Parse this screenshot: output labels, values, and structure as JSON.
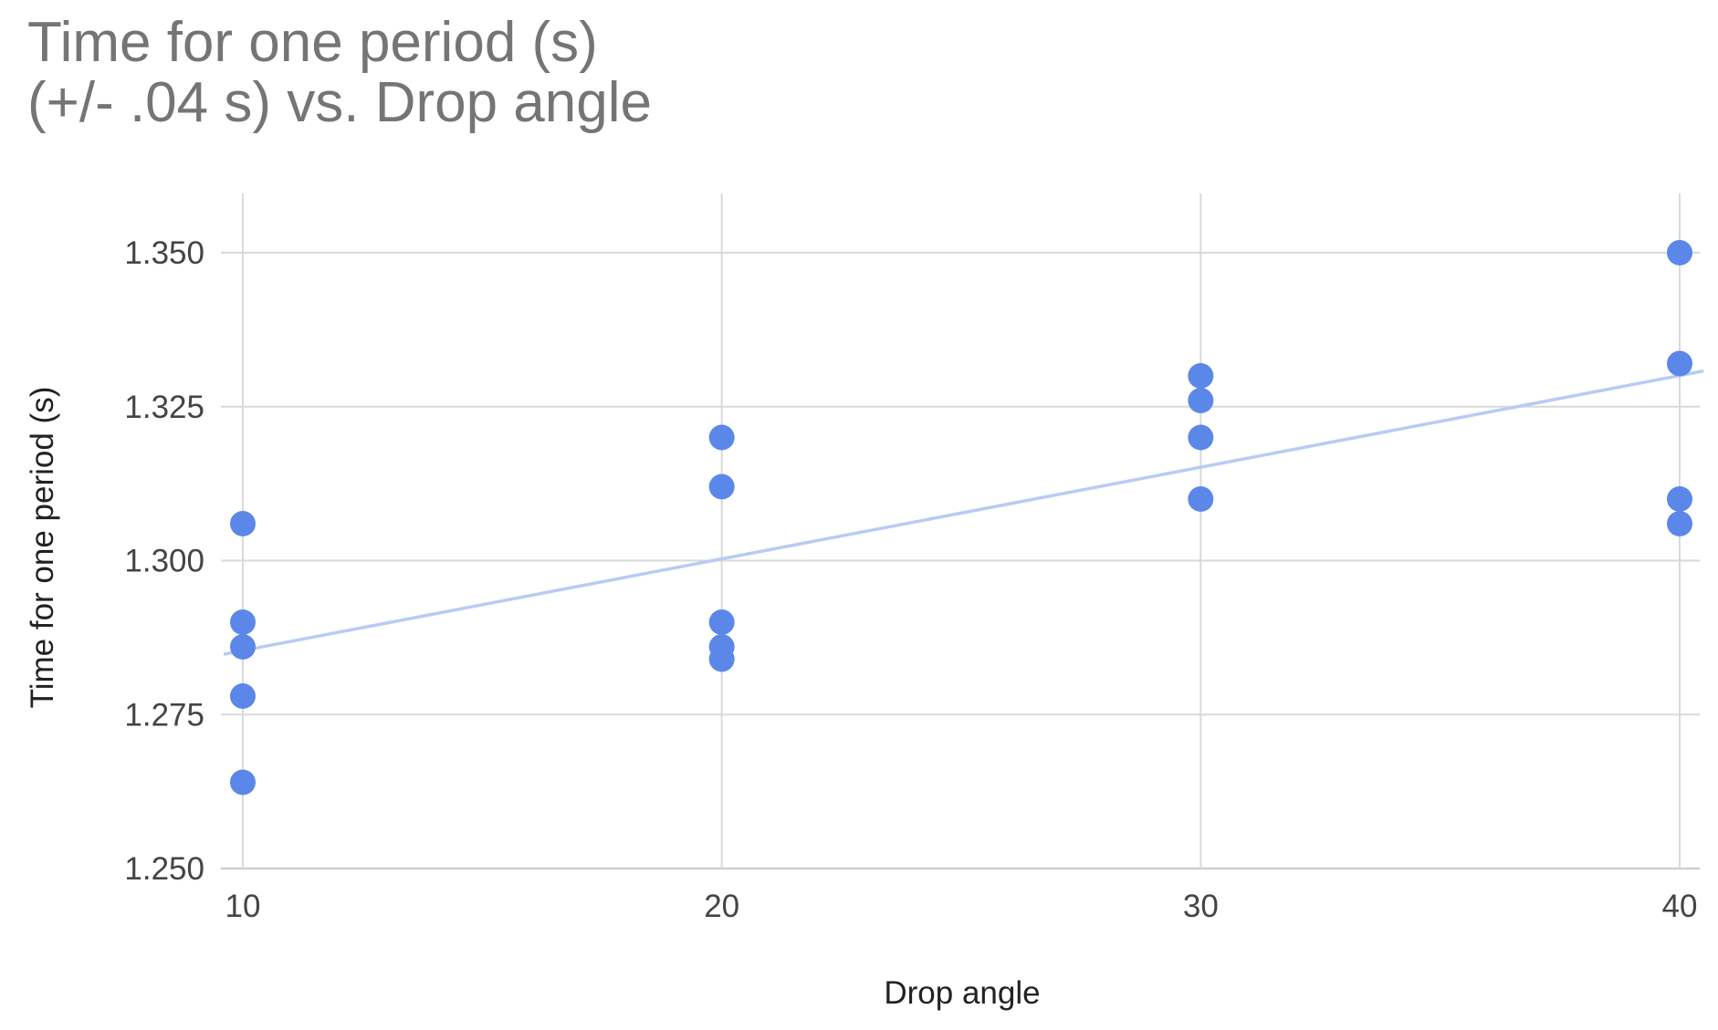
{
  "chart_data": {
    "type": "scatter",
    "title_lines": [
      "Time for one period (s)",
      "(+/- .04 s) vs. Drop angle"
    ],
    "xlabel": "Drop angle",
    "ylabel": "Time for one period (s)",
    "xlim": [
      10,
      40
    ],
    "ylim": [
      1.25,
      1.36
    ],
    "xticks": [
      10,
      20,
      30,
      40
    ],
    "xtick_labels": [
      "10",
      "20",
      "30",
      "40"
    ],
    "yticks": [
      1.25,
      1.275,
      1.3,
      1.325,
      1.35
    ],
    "ytick_labels": [
      "1.250",
      "1.275",
      "1.300",
      "1.325",
      "1.350"
    ],
    "grid": true,
    "legend": "none",
    "colors": {
      "points": "#5b88e8",
      "trendline": "#b9cbf3",
      "grid": "#d9d9d9",
      "title": "#757575"
    },
    "series": [
      {
        "points": [
          {
            "x": 10,
            "y": 1.306
          },
          {
            "x": 10,
            "y": 1.29
          },
          {
            "x": 10,
            "y": 1.286
          },
          {
            "x": 10,
            "y": 1.278
          },
          {
            "x": 10,
            "y": 1.264
          },
          {
            "x": 20,
            "y": 1.32
          },
          {
            "x": 20,
            "y": 1.312
          },
          {
            "x": 20,
            "y": 1.29
          },
          {
            "x": 20,
            "y": 1.286
          },
          {
            "x": 20,
            "y": 1.284
          },
          {
            "x": 30,
            "y": 1.33
          },
          {
            "x": 30,
            "y": 1.326
          },
          {
            "x": 30,
            "y": 1.32
          },
          {
            "x": 30,
            "y": 1.31
          },
          {
            "x": 40,
            "y": 1.35
          },
          {
            "x": 40,
            "y": 1.332
          },
          {
            "x": 40,
            "y": 1.31
          },
          {
            "x": 40,
            "y": 1.306
          }
        ]
      }
    ],
    "trendline": {
      "type": "linear",
      "start": {
        "x": 9.6,
        "y": 1.2848
      },
      "end": {
        "x": 40.5,
        "y": 1.3308
      }
    }
  }
}
